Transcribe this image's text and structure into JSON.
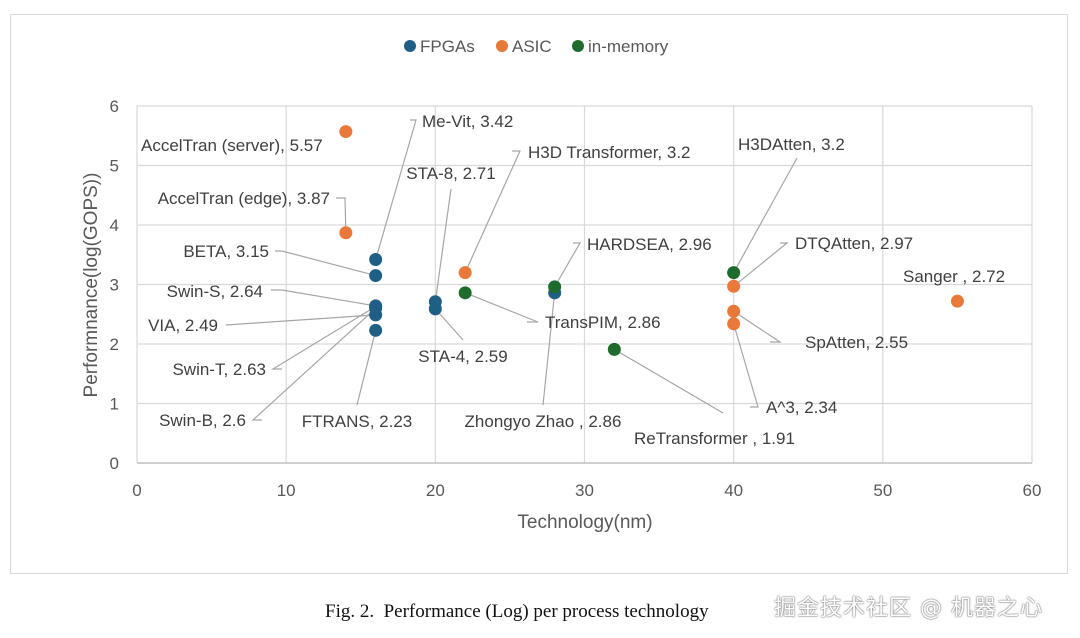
{
  "chart_data": {
    "type": "scatter",
    "title": "",
    "xlabel": "Technology(nm)",
    "ylabel": "Performnance(log(GOPS))",
    "xlim": [
      0,
      60
    ],
    "ylim": [
      0,
      6
    ],
    "xticks": [
      0,
      10,
      20,
      30,
      40,
      50,
      60
    ],
    "yticks": [
      0,
      1,
      2,
      3,
      4,
      5,
      6
    ],
    "grid": true,
    "legend_position": "top-center",
    "series": [
      {
        "name": "FPGAs",
        "color": "#1f5f86",
        "points": [
          {
            "label": "Me-Vit, 3.42",
            "x": 16,
            "y": 3.42
          },
          {
            "label": "BETA, 3.15",
            "x": 16,
            "y": 3.15
          },
          {
            "label": "Swin-S, 2.64",
            "x": 16,
            "y": 2.64
          },
          {
            "label": "Swin-T, 2.63",
            "x": 16,
            "y": 2.63
          },
          {
            "label": "Swin-B, 2.6",
            "x": 16,
            "y": 2.6
          },
          {
            "label": "VIA, 2.49",
            "x": 16,
            "y": 2.49
          },
          {
            "label": "FTRANS, 2.23",
            "x": 16,
            "y": 2.23
          },
          {
            "label": "STA-8, 2.71",
            "x": 20,
            "y": 2.71
          },
          {
            "label": "STA-4, 2.59",
            "x": 20,
            "y": 2.59
          },
          {
            "label": "Zhongyo Zhao , 2.86",
            "x": 28,
            "y": 2.86
          }
        ]
      },
      {
        "name": "ASIC",
        "color": "#e8793b",
        "points": [
          {
            "label": "AccelTran (server), 5.57",
            "x": 14,
            "y": 5.57
          },
          {
            "label": "AccelTran (edge), 3.87",
            "x": 14,
            "y": 3.87
          },
          {
            "label": "H3D Transformer, 3.2",
            "x": 22,
            "y": 3.2
          },
          {
            "label": "DTQAtten, 2.97",
            "x": 40,
            "y": 2.97
          },
          {
            "label": "SpAtten, 2.55",
            "x": 40,
            "y": 2.55
          },
          {
            "label": "A^3, 2.34",
            "x": 40,
            "y": 2.34
          },
          {
            "label": "Sanger , 2.72",
            "x": 55,
            "y": 2.72
          }
        ]
      },
      {
        "name": "in-memory",
        "color": "#1e6b2c",
        "points": [
          {
            "label": "HARDSEA, 2.96",
            "x": 28,
            "y": 2.96
          },
          {
            "label": "TransPIM, 2.86",
            "x": 22,
            "y": 2.86
          },
          {
            "label": "ReTransformer , 1.91",
            "x": 32,
            "y": 1.91
          },
          {
            "label": "H3DAtten, 3.2",
            "x": 40,
            "y": 3.2
          }
        ]
      }
    ]
  },
  "caption": "Fig. 2.  Performance (Log) per process technology",
  "watermark": "掘金技术社区 @ 机器之心"
}
